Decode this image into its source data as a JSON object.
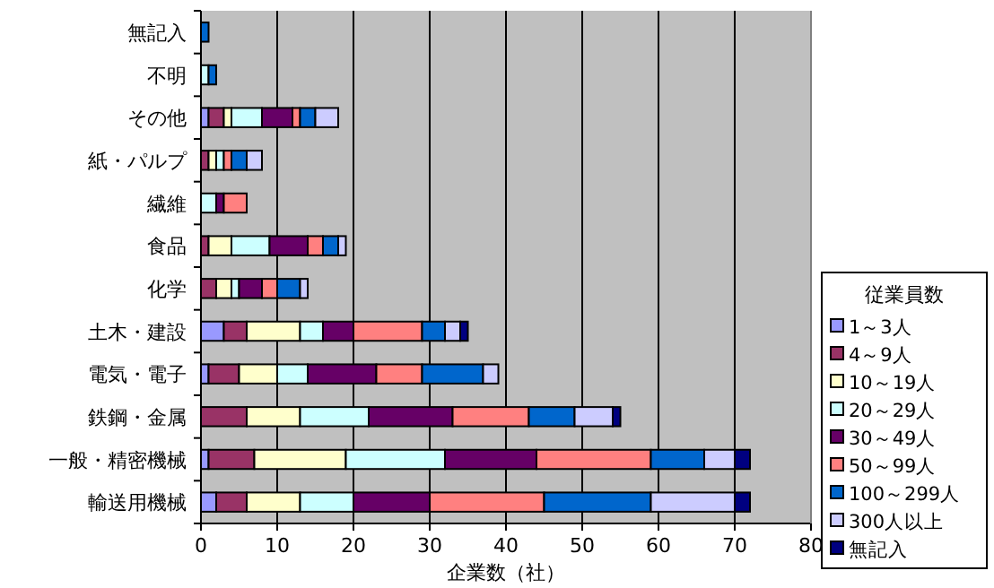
{
  "chart_data": {
    "type": "bar",
    "orientation": "horizontal",
    "stacked": true,
    "categories": [
      "無記入",
      "不明",
      "その他",
      "紙・パルプ",
      "繊維",
      "食品",
      "化学",
      "土木・建設",
      "電気・電子",
      "鉄鋼・金属",
      "一般・精密機械",
      "輸送用機械"
    ],
    "xlabel": "企業数（社）",
    "legend_title": "従業員数",
    "legend": "right",
    "grid": "x",
    "xlim": [
      0,
      80
    ],
    "xticks": [
      0,
      10,
      20,
      30,
      40,
      50,
      60,
      70,
      80
    ],
    "series": [
      {
        "name": "1～3人",
        "color": "#9999ff",
        "values": [
          0,
          0,
          1,
          0,
          0,
          0,
          0,
          3,
          1,
          0,
          1,
          2
        ]
      },
      {
        "name": "4～9人",
        "color": "#993366",
        "values": [
          0,
          0,
          2,
          1,
          0,
          1,
          2,
          3,
          4,
          6,
          6,
          4
        ]
      },
      {
        "name": "10～19人",
        "color": "#ffffcc",
        "values": [
          0,
          0,
          1,
          1,
          0,
          3,
          2,
          7,
          5,
          7,
          12,
          7
        ]
      },
      {
        "name": "20～29人",
        "color": "#ccffff",
        "values": [
          0,
          1,
          4,
          1,
          2,
          5,
          1,
          3,
          4,
          9,
          13,
          7
        ]
      },
      {
        "name": "30～49人",
        "color": "#660066",
        "values": [
          0,
          0,
          4,
          0,
          1,
          5,
          3,
          4,
          9,
          11,
          12,
          10
        ]
      },
      {
        "name": "50～99人",
        "color": "#ff8080",
        "values": [
          0,
          0,
          1,
          1,
          3,
          2,
          2,
          9,
          6,
          10,
          15,
          15
        ]
      },
      {
        "name": "100～299人",
        "color": "#0066cc",
        "values": [
          1,
          1,
          2,
          2,
          0,
          2,
          3,
          3,
          8,
          6,
          7,
          14
        ]
      },
      {
        "name": "300人以上",
        "color": "#ccccff",
        "values": [
          0,
          0,
          3,
          2,
          0,
          1,
          1,
          2,
          2,
          5,
          4,
          11
        ]
      },
      {
        "name": "無記入",
        "color": "#000080",
        "values": [
          0,
          0,
          0,
          0,
          0,
          0,
          0,
          1,
          0,
          1,
          2,
          2
        ]
      }
    ]
  }
}
